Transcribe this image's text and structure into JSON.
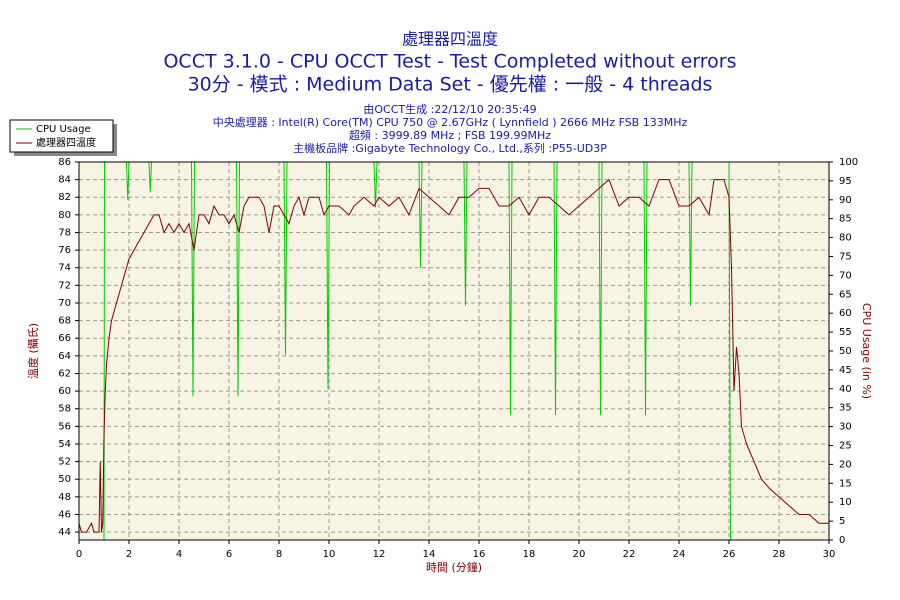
{
  "chart_data": {
    "type": "line",
    "title": "處理器四溫度",
    "headlines": [
      "OCCT 3.1.0 - CPU OCCT Test - Test Completed without errors",
      "30分 - 模式 : Medium Data Set - 優先權 : 一般 - 4 threads"
    ],
    "info_lines": [
      "由OCCT生成 :22/12/10 20:35:49",
      "中央處理器 : Intel(R) Core(TM) CPU 750 @ 2.67GHz ( Lynnfield ) 2666 MHz FSB 133MHz",
      "超頻 : 3999.89 MHz ; FSB 199.99MHz",
      "主機板品牌 :Gigabyte Technology Co., Ltd.,系列 :P55-UD3P"
    ],
    "x_label": "時間 (分鐘)",
    "y_label": "溫度 (攝氏)",
    "y2_label": "CPU Usage (in %)",
    "xlim": [
      0,
      30
    ],
    "xticks": [
      0,
      2,
      4,
      6,
      8,
      10,
      12,
      14,
      16,
      18,
      20,
      22,
      24,
      26,
      28,
      30
    ],
    "ylim": [
      43.1,
      86
    ],
    "yticks": [
      44,
      46,
      48,
      50,
      52,
      54,
      56,
      58,
      60,
      62,
      64,
      66,
      68,
      70,
      72,
      74,
      76,
      78,
      80,
      82,
      84,
      86
    ],
    "y2lim": [
      0,
      100
    ],
    "y2ticks": [
      0,
      5,
      10,
      15,
      20,
      25,
      30,
      35,
      40,
      45,
      50,
      55,
      60,
      65,
      70,
      75,
      80,
      85,
      90,
      95,
      100
    ],
    "grid": true,
    "legend": "top-left",
    "series": [
      {
        "name": "CPU Usage",
        "color": "#00cc00",
        "axis": "y2",
        "x": [
          0,
          1.0,
          1.02,
          1.9,
          1.95,
          2.0,
          2.8,
          2.85,
          2.9,
          4.5,
          4.56,
          4.62,
          6.3,
          6.36,
          6.42,
          8.2,
          8.26,
          8.32,
          9.9,
          9.96,
          10.02,
          11.8,
          11.86,
          11.92,
          13.6,
          13.66,
          13.72,
          15.4,
          15.46,
          15.52,
          17.2,
          17.26,
          17.32,
          19.0,
          19.06,
          19.12,
          20.8,
          20.86,
          20.92,
          22.6,
          22.66,
          22.72,
          24.4,
          24.46,
          24.52,
          26.0,
          26.06,
          30
        ],
        "values": [
          0,
          0,
          100,
          100,
          90,
          100,
          100,
          92,
          100,
          100,
          38,
          100,
          100,
          38,
          100,
          100,
          49,
          100,
          100,
          40,
          100,
          100,
          88,
          100,
          100,
          72,
          100,
          100,
          62,
          100,
          100,
          33,
          100,
          100,
          33,
          100,
          100,
          33,
          100,
          100,
          33,
          100,
          100,
          62,
          100,
          100,
          0,
          0
        ]
      },
      {
        "name": "處理器四溫度",
        "color": "#800000",
        "axis": "y",
        "x": [
          0,
          0.1,
          0.3,
          0.5,
          0.6,
          0.8,
          0.85,
          0.9,
          0.95,
          1.0,
          1.05,
          1.1,
          1.2,
          1.3,
          1.5,
          1.7,
          1.9,
          2.0,
          2.2,
          2.4,
          2.6,
          2.8,
          3.0,
          3.2,
          3.4,
          3.6,
          3.8,
          4.0,
          4.2,
          4.4,
          4.6,
          4.8,
          5.0,
          5.2,
          5.4,
          5.6,
          5.8,
          6.0,
          6.2,
          6.4,
          6.6,
          6.8,
          7.0,
          7.2,
          7.4,
          7.6,
          7.8,
          8.0,
          8.2,
          8.4,
          8.6,
          8.8,
          9.0,
          9.2,
          9.4,
          9.6,
          9.8,
          10.0,
          10.4,
          10.8,
          11.0,
          11.4,
          11.8,
          12.0,
          12.4,
          12.8,
          13.2,
          13.6,
          14.0,
          14.4,
          14.8,
          15.2,
          15.6,
          16.0,
          16.4,
          16.8,
          17.2,
          17.6,
          18.0,
          18.4,
          18.8,
          19.2,
          19.6,
          20.0,
          20.4,
          20.8,
          21.2,
          21.6,
          22.0,
          22.4,
          22.8,
          23.2,
          23.6,
          24.0,
          24.4,
          24.8,
          25.2,
          25.4,
          25.8,
          26.0,
          26.1,
          26.2,
          26.3,
          26.4,
          26.5,
          26.7,
          27.0,
          27.3,
          27.6,
          28.0,
          28.4,
          28.8,
          29.2,
          29.6,
          30.0
        ],
        "values": [
          45,
          44,
          44,
          45,
          44,
          44,
          52,
          44,
          45,
          55,
          60,
          63,
          66,
          68,
          70,
          72,
          74,
          75,
          76,
          77,
          78,
          79,
          80,
          80,
          78,
          79,
          78,
          79,
          78,
          79,
          76,
          80,
          80,
          79,
          81,
          80,
          80,
          79,
          80,
          78,
          81,
          82,
          82,
          82,
          81,
          78,
          81,
          81,
          80,
          79,
          81,
          82,
          80,
          82,
          82,
          82,
          80,
          81,
          81,
          80,
          81,
          82,
          81,
          82,
          81,
          82,
          80,
          83,
          82,
          81,
          80,
          82,
          82,
          83,
          83,
          81,
          81,
          82,
          80,
          82,
          82,
          81,
          80,
          81,
          82,
          83,
          84,
          81,
          82,
          82,
          81,
          84,
          84,
          81,
          81,
          82,
          80,
          84,
          84,
          82,
          74,
          60,
          65,
          62,
          56,
          54,
          52,
          50,
          49,
          48,
          47,
          46,
          46,
          45,
          45
        ]
      }
    ]
  }
}
